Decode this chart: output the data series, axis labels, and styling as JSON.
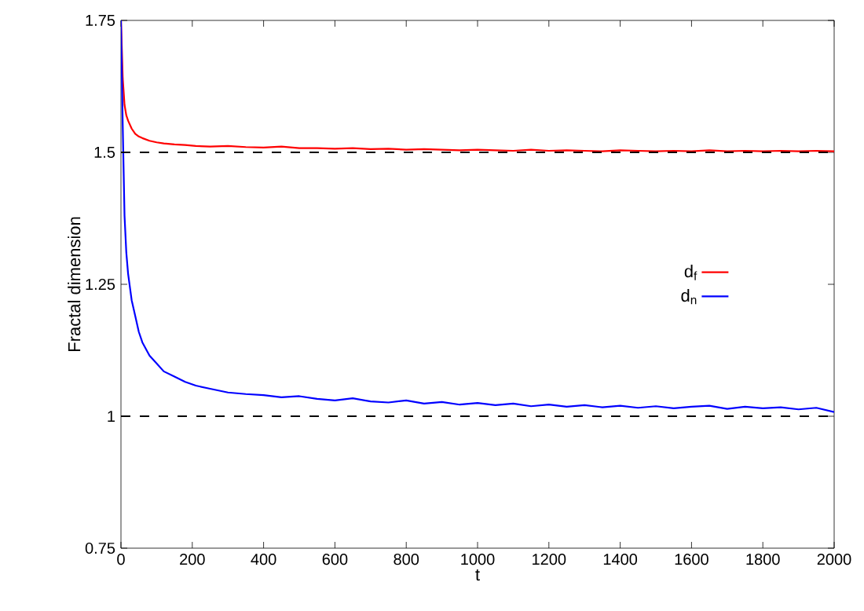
{
  "chart_data": {
    "type": "line",
    "xlabel": "t",
    "ylabel": "Fractal dimension",
    "x": [
      0,
      5,
      10,
      15,
      20,
      30,
      40,
      50,
      60,
      80,
      100,
      120,
      150,
      180,
      210,
      250,
      300,
      350,
      400,
      450,
      500,
      550,
      600,
      650,
      700,
      750,
      800,
      850,
      900,
      950,
      1000,
      1050,
      1100,
      1150,
      1200,
      1250,
      1300,
      1350,
      1400,
      1450,
      1500,
      1550,
      1600,
      1650,
      1700,
      1750,
      1800,
      1850,
      1900,
      1950,
      2000
    ],
    "series": [
      {
        "name": "d$_{f}$",
        "color": "#ff0000",
        "values": [
          1.75,
          1.64,
          1.59,
          1.57,
          1.56,
          1.545,
          1.535,
          1.53,
          1.527,
          1.522,
          1.519,
          1.517,
          1.515,
          1.514,
          1.512,
          1.511,
          1.512,
          1.51,
          1.509,
          1.511,
          1.508,
          1.508,
          1.507,
          1.508,
          1.506,
          1.507,
          1.505,
          1.506,
          1.505,
          1.504,
          1.505,
          1.504,
          1.503,
          1.505,
          1.503,
          1.504,
          1.503,
          1.502,
          1.504,
          1.503,
          1.502,
          1.503,
          1.502,
          1.504,
          1.502,
          1.503,
          1.502,
          1.503,
          1.502,
          1.503,
          1.502
        ]
      },
      {
        "name": "d$_{n}$",
        "color": "#0000ff",
        "values": [
          1.75,
          1.55,
          1.38,
          1.31,
          1.27,
          1.22,
          1.19,
          1.16,
          1.14,
          1.115,
          1.1,
          1.085,
          1.075,
          1.065,
          1.058,
          1.052,
          1.045,
          1.042,
          1.04,
          1.036,
          1.038,
          1.033,
          1.03,
          1.034,
          1.028,
          1.026,
          1.03,
          1.024,
          1.027,
          1.022,
          1.025,
          1.021,
          1.024,
          1.019,
          1.022,
          1.018,
          1.021,
          1.017,
          1.02,
          1.016,
          1.019,
          1.015,
          1.018,
          1.02,
          1.014,
          1.018,
          1.015,
          1.017,
          1.013,
          1.016,
          1.008
        ]
      }
    ],
    "xlim": [
      0,
      2000
    ],
    "ylim": [
      0.75,
      1.75
    ],
    "xticks": [
      0,
      200,
      400,
      600,
      800,
      1000,
      1200,
      1400,
      1600,
      1800,
      2000
    ],
    "yticks": [
      0.75,
      1,
      1.25,
      1.5,
      1.75
    ],
    "ref_lines": [
      {
        "axis": "y",
        "value": 1.5,
        "color": "#000000",
        "line_style": "dashed"
      },
      {
        "axis": "y",
        "value": 1,
        "color": "#000000",
        "line_style": "dashed"
      }
    ],
    "legend": "right",
    "grid": false,
    "marker": "none",
    "line_style": "solid"
  }
}
